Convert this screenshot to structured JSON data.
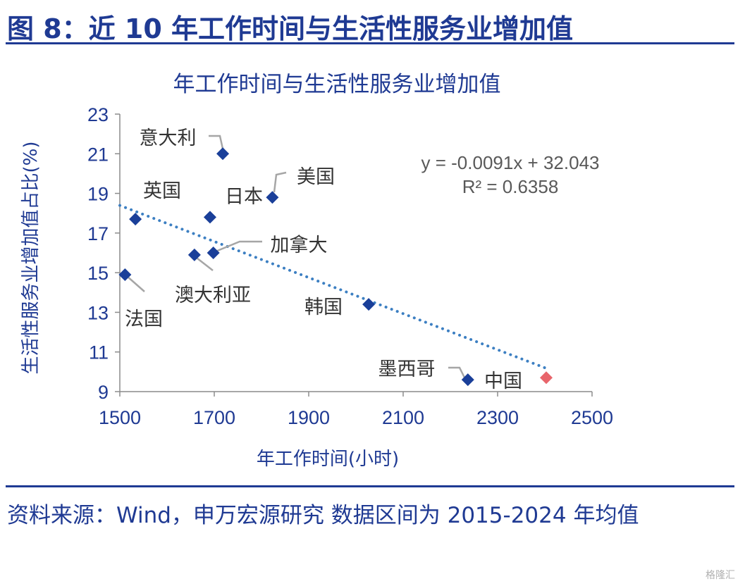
{
  "figure_title": "图 8：近 10 年工作时间与生活性服务业增加值",
  "source_note": "资料来源：Wind，申万宏源研究 数据区间为 2015-2024 年均值",
  "watermark": "格隆汇",
  "colors": {
    "brand": "#1f3a93",
    "point": "#1a3f99",
    "highlight": "#e8656b",
    "trend": "#3c7fc2"
  },
  "chart_data": {
    "type": "scatter",
    "title": "年工作时间与生活性服务业增加值",
    "xlabel": "年工作时间(小时)",
    "ylabel": "生活性服务业增加值占比(%)",
    "xlim": [
      1500,
      2500
    ],
    "ylim": [
      9,
      23
    ],
    "xticks": [
      1500,
      1700,
      1900,
      2100,
      2300,
      2500
    ],
    "yticks": [
      9,
      11,
      13,
      15,
      17,
      19,
      21,
      23
    ],
    "points": [
      {
        "label": "意大利",
        "x": 1718,
        "y": 21.0
      },
      {
        "label": "美国",
        "x": 1823,
        "y": 18.8
      },
      {
        "label": "日本",
        "x": 1691,
        "y": 17.8
      },
      {
        "label": "英国",
        "x": 1533,
        "y": 17.7
      },
      {
        "label": "加拿大",
        "x": 1698,
        "y": 16.0
      },
      {
        "label": "澳大利亚",
        "x": 1658,
        "y": 15.9
      },
      {
        "label": "法国",
        "x": 1511,
        "y": 14.9
      },
      {
        "label": "韩国",
        "x": 2027,
        "y": 13.4
      },
      {
        "label": "墨西哥",
        "x": 2237,
        "y": 9.6
      },
      {
        "label": "中国",
        "x": 2403,
        "y": 9.7,
        "highlight": true
      }
    ],
    "trendline": {
      "equation": "y = -0.0091x + 32.043",
      "r2": "R² = 0.6358",
      "slope": -0.0091,
      "intercept": 32.043,
      "x_range": [
        1500,
        2403
      ]
    },
    "grid": false,
    "legend": "none"
  }
}
